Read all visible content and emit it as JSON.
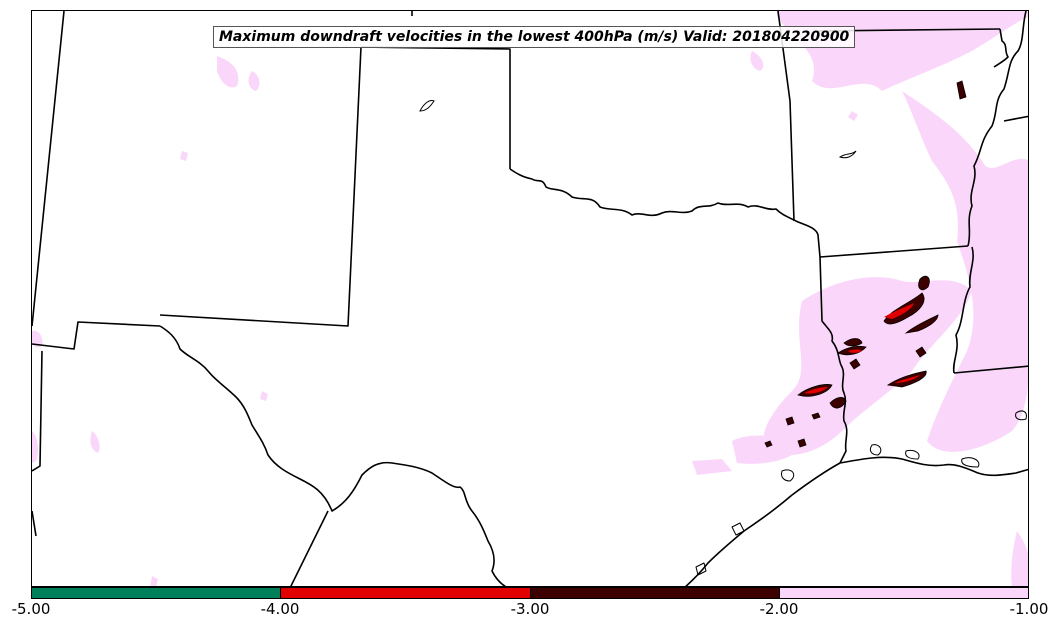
{
  "title": "Maximum downdraft velocities in the lowest 400hPa (m/s) Valid: 201804220900",
  "colorbar": {
    "ticks": [
      "-5.00",
      "-4.00",
      "-3.00",
      "-2.00",
      "-1.00"
    ],
    "colors": [
      "#00805a",
      "#e00000",
      "#3d0000",
      "#fad7fa"
    ]
  },
  "colors": {
    "light": "#fad7fa",
    "dark": "#3d0000",
    "red": "#e00000",
    "border": "#000000"
  }
}
